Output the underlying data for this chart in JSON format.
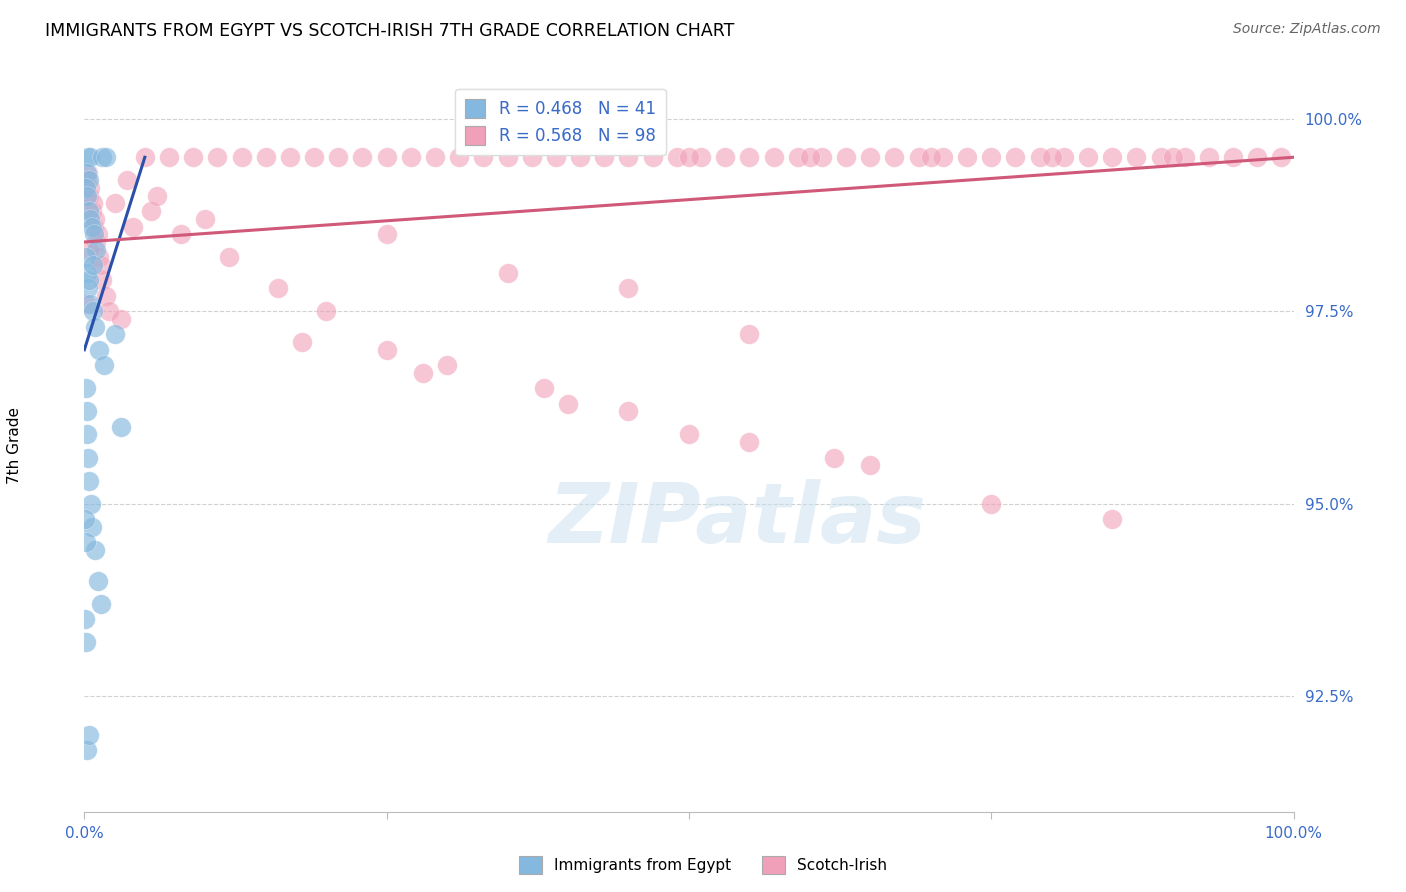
{
  "title": "IMMIGRANTS FROM EGYPT VS SCOTCH-IRISH 7TH GRADE CORRELATION CHART",
  "source": "Source: ZipAtlas.com",
  "ylabel": "7th Grade",
  "xlim": [
    0.0,
    100.0
  ],
  "ylim": [
    91.0,
    100.5
  ],
  "yticks": [
    92.5,
    95.0,
    97.5,
    100.0
  ],
  "ytick_labels": [
    "92.5%",
    "95.0%",
    "97.5%",
    "100.0%"
  ],
  "xticks": [
    0.0,
    25.0,
    50.0,
    75.0,
    100.0
  ],
  "xtick_labels": [
    "0.0%",
    "",
    "",
    "",
    "100.0%"
  ],
  "legend_label1": "Immigrants from Egypt",
  "legend_label2": "Scotch-Irish",
  "R1": 0.468,
  "N1": 41,
  "R2": 0.568,
  "N2": 98,
  "color_blue": "#85b8de",
  "color_pink": "#f0a0b8",
  "color_line_blue": "#2a50aa",
  "color_line_pink": "#d05878",
  "blue_x": [
    0.3,
    0.5,
    1.5,
    1.8,
    0.2,
    0.4,
    0.15,
    0.25,
    0.35,
    0.45,
    0.6,
    0.8,
    1.0,
    0.1,
    0.2,
    0.3,
    0.5,
    0.7,
    0.9,
    1.2,
    1.6,
    0.12,
    0.18,
    0.22,
    0.28,
    0.38,
    0.55,
    0.65,
    0.85,
    1.1,
    1.4,
    0.08,
    0.13,
    0.42,
    0.75,
    2.5,
    3.0,
    0.05,
    0.1,
    0.2,
    0.35
  ],
  "blue_y": [
    99.5,
    99.5,
    99.5,
    99.5,
    99.3,
    99.2,
    99.1,
    99.0,
    98.8,
    98.7,
    98.6,
    98.5,
    98.3,
    98.2,
    98.0,
    97.8,
    97.6,
    97.5,
    97.3,
    97.0,
    96.8,
    96.5,
    96.2,
    95.9,
    95.6,
    95.3,
    95.0,
    94.7,
    94.4,
    94.0,
    93.7,
    93.5,
    93.2,
    97.9,
    98.1,
    97.2,
    96.0,
    94.8,
    94.5,
    91.8,
    92.0
  ],
  "pink_x_top": [
    5.0,
    7.0,
    9.0,
    11.0,
    13.0,
    15.0,
    17.0,
    19.0,
    21.0,
    23.0,
    25.0,
    27.0,
    29.0,
    31.0,
    33.0,
    35.0,
    37.0,
    39.0,
    41.0,
    43.0,
    45.0,
    47.0,
    49.0,
    51.0,
    53.0,
    55.0,
    57.0,
    59.0,
    61.0,
    63.0,
    65.0,
    67.0,
    69.0,
    71.0,
    73.0,
    75.0,
    77.0,
    79.0,
    81.0,
    83.0,
    85.0,
    87.0,
    89.0,
    91.0,
    93.0,
    95.0,
    97.0,
    99.0,
    50.0,
    60.0,
    70.0,
    80.0,
    90.0
  ],
  "pink_y_top": [
    99.5,
    99.5,
    99.5,
    99.5,
    99.5,
    99.5,
    99.5,
    99.5,
    99.5,
    99.5,
    99.5,
    99.5,
    99.5,
    99.5,
    99.5,
    99.5,
    99.5,
    99.5,
    99.5,
    99.5,
    99.5,
    99.5,
    99.5,
    99.5,
    99.5,
    99.5,
    99.5,
    99.5,
    99.5,
    99.5,
    99.5,
    99.5,
    99.5,
    99.5,
    99.5,
    99.5,
    99.5,
    99.5,
    99.5,
    99.5,
    99.5,
    99.5,
    99.5,
    99.5,
    99.5,
    99.5,
    99.5,
    99.5,
    99.5,
    99.5,
    99.5,
    99.5,
    99.5
  ],
  "pink_x_low": [
    0.2,
    0.4,
    0.6,
    0.8,
    1.0,
    1.2,
    1.5,
    1.8,
    2.0,
    0.3,
    0.5,
    0.7,
    0.9,
    1.1,
    1.4,
    0.15,
    0.35,
    3.5,
    5.5,
    8.0,
    12.0,
    16.0,
    20.0,
    25.0,
    30.0,
    38.0,
    45.0,
    55.0,
    65.0,
    75.0,
    85.0,
    55.0,
    45.0,
    35.0,
    25.0,
    10.0,
    6.0,
    4.0,
    2.5,
    3.0,
    18.0,
    28.0,
    40.0,
    50.0,
    62.0
  ],
  "pink_y_low": [
    99.2,
    99.0,
    98.8,
    98.6,
    98.4,
    98.2,
    97.9,
    97.7,
    97.5,
    99.3,
    99.1,
    98.9,
    98.7,
    98.5,
    98.1,
    97.6,
    98.3,
    99.2,
    98.8,
    98.5,
    98.2,
    97.8,
    97.5,
    97.0,
    96.8,
    96.5,
    96.2,
    95.8,
    95.5,
    95.0,
    94.8,
    97.2,
    97.8,
    98.0,
    98.5,
    98.7,
    99.0,
    98.6,
    98.9,
    97.4,
    97.1,
    96.7,
    96.3,
    95.9,
    95.6
  ],
  "blue_line_x": [
    0.0,
    5.0
  ],
  "blue_line_y": [
    97.0,
    99.5
  ],
  "pink_line_x": [
    0.0,
    100.0
  ],
  "pink_line_y": [
    98.4,
    99.5
  ]
}
